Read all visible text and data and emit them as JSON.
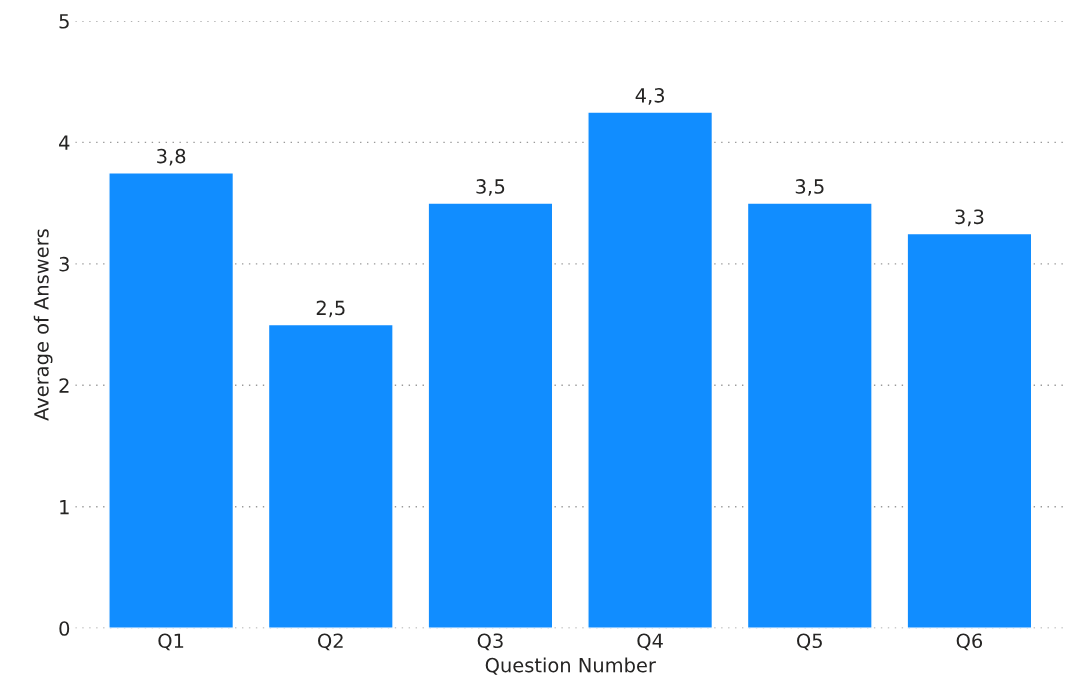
{
  "chart_data": {
    "type": "bar",
    "xlabel": "Question Number",
    "ylabel": "Average of Answers",
    "categories": [
      "Q1",
      "Q2",
      "Q3",
      "Q4",
      "Q5",
      "Q6"
    ],
    "values": [
      3.75,
      2.5,
      3.5,
      4.25,
      3.5,
      3.25
    ],
    "value_labels": [
      "3,8",
      "2,5",
      "3,5",
      "4,3",
      "3,5",
      "3,3"
    ],
    "color": "#118dff",
    "ylim": [
      0,
      5
    ],
    "yticks": [
      0,
      1,
      2,
      3,
      4,
      5
    ],
    "grid": "y",
    "legend": false
  }
}
